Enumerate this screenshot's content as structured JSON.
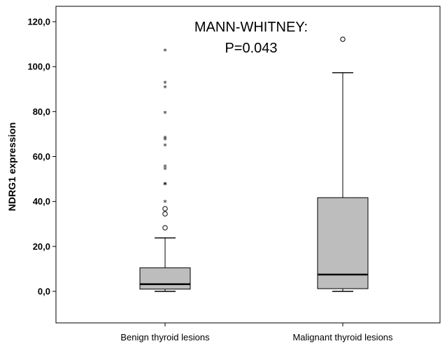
{
  "chart_data": {
    "type": "boxplot",
    "ylabel": "NDRG1 expression",
    "ylim": [
      -12,
      126
    ],
    "yticks": [
      0,
      20,
      40,
      60,
      80,
      100,
      120
    ],
    "ytick_labels": [
      "0,0",
      "20,0",
      "40,0",
      "60,0",
      "80,0",
      "100,0",
      "120,0"
    ],
    "annotation": [
      "MANN-WHITNEY:",
      "P=0.043"
    ],
    "box_color": "#bdbdbd",
    "categories": [
      "Benign thyroid lesions",
      "Malignant thyroid lesions"
    ],
    "boxes": [
      {
        "category": "Benign thyroid lesions",
        "whisker_low": 0,
        "q1": 1,
        "median": 3.2,
        "q3": 10.5,
        "whisker_high": 23.8,
        "outliers_circle": [
          28.3,
          34.5,
          36.8
        ],
        "outliers_star": [
          39.6,
          47.4,
          47.6,
          54.2,
          55.3,
          64.6,
          67.4,
          68.1,
          79.2,
          90.6,
          92.6,
          106.9
        ]
      },
      {
        "category": "Malignant thyroid lesions",
        "whisker_low": 0,
        "q1": 1.2,
        "median": 7.5,
        "q3": 41.7,
        "whisker_high": 97.3,
        "outliers_circle": [
          112.2
        ],
        "outliers_star": []
      }
    ]
  }
}
